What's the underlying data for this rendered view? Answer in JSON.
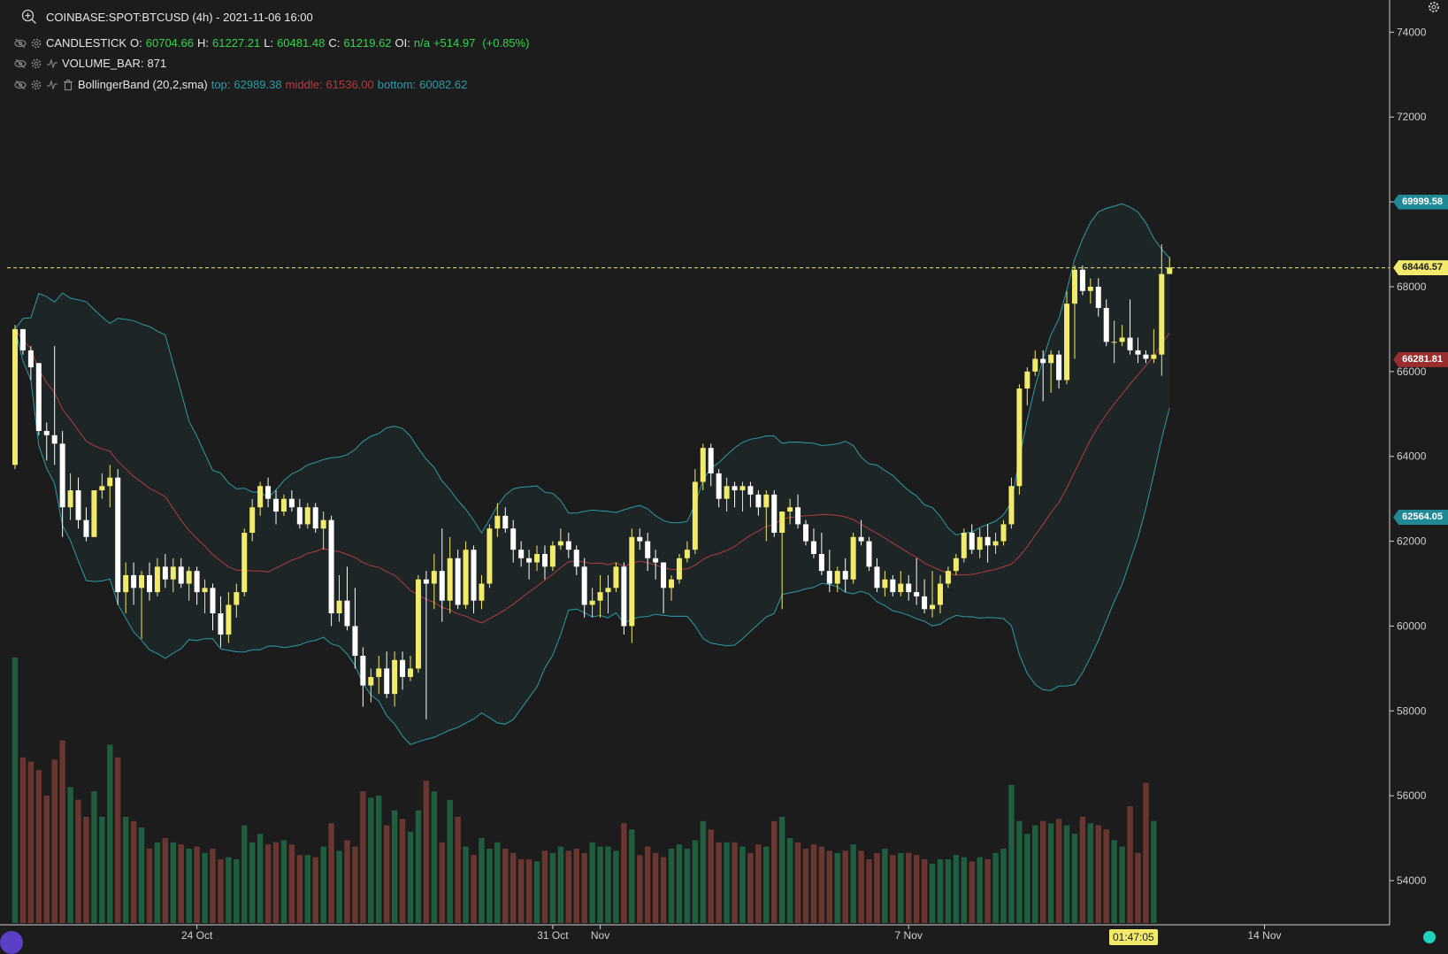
{
  "header": {
    "symbol_line": "COINBASE:SPOT:BTCUSD (4h) - 2021-11-06 16:00"
  },
  "legend": {
    "candlestick": {
      "name": "CANDLESTICK",
      "o_label": "O:",
      "o": "60704.66",
      "h_label": "H:",
      "h": "61227.21",
      "l_label": "L:",
      "l": "60481.48",
      "c_label": "C:",
      "c": "61219.62",
      "oi_label": "OI:",
      "oi": "n/a",
      "change": "+514.97",
      "change_pct": "(+0.85%)"
    },
    "volume": {
      "name": "VOLUME_BAR:",
      "value": "871"
    },
    "bollinger": {
      "name": "BollingerBand (20,2,sma)",
      "top_label": "top:",
      "top": "62989.38",
      "middle_label": "middle:",
      "middle": "61536.00",
      "bottom_label": "bottom:",
      "bottom": "60082.62"
    }
  },
  "price_tags": {
    "upper": "69999.58",
    "last": "68446.57",
    "middle": "66281.81",
    "lower": "62564.05"
  },
  "crosshair_time": "01:47:05",
  "colors": {
    "bull": "#f2ea6b",
    "bear": "#ffffff",
    "vol_up": "#1f5e3e",
    "vol_down": "#6a3730",
    "band": "#2a9ba8",
    "mid": "#b33b3b",
    "last": "#f2ea6b"
  },
  "chart_data": {
    "type": "candlestick",
    "x_ticks": [
      "24 Oct",
      "31 Oct",
      "Nov",
      "7 Nov",
      "14 Nov"
    ],
    "y_ticks": [
      "54000",
      "56000",
      "58000",
      "60000",
      "62000",
      "64000",
      "66000",
      "68000",
      "70000",
      "72000",
      "74000"
    ],
    "ylim": [
      53000,
      74300
    ],
    "interval": "4h",
    "candles": [
      {
        "o": 63800,
        "h": 67100,
        "l": 63700,
        "c": 67000
      },
      {
        "o": 67000,
        "h": 67000,
        "l": 66400,
        "c": 66500
      },
      {
        "o": 66500,
        "h": 66600,
        "l": 65800,
        "c": 66100
      },
      {
        "o": 66200,
        "h": 66200,
        "l": 64500,
        "c": 64600
      },
      {
        "o": 64600,
        "h": 64800,
        "l": 63900,
        "c": 64500
      },
      {
        "o": 64500,
        "h": 66600,
        "l": 63800,
        "c": 64300
      },
      {
        "o": 64300,
        "h": 64600,
        "l": 62100,
        "c": 62800
      },
      {
        "o": 62800,
        "h": 63600,
        "l": 62500,
        "c": 63200
      },
      {
        "o": 63200,
        "h": 63500,
        "l": 62300,
        "c": 62500
      },
      {
        "o": 62500,
        "h": 62800,
        "l": 62000,
        "c": 62100
      },
      {
        "o": 62100,
        "h": 63200,
        "l": 62100,
        "c": 63200
      },
      {
        "o": 63200,
        "h": 63600,
        "l": 63000,
        "c": 63300
      },
      {
        "o": 63300,
        "h": 63800,
        "l": 62800,
        "c": 63500
      },
      {
        "o": 63500,
        "h": 63700,
        "l": 60500,
        "c": 60800
      },
      {
        "o": 60800,
        "h": 61500,
        "l": 60300,
        "c": 61200
      },
      {
        "o": 61200,
        "h": 61500,
        "l": 60500,
        "c": 60900
      },
      {
        "o": 60900,
        "h": 61300,
        "l": 59700,
        "c": 61200
      },
      {
        "o": 61200,
        "h": 61500,
        "l": 60600,
        "c": 60800
      },
      {
        "o": 60800,
        "h": 61600,
        "l": 60700,
        "c": 61400
      },
      {
        "o": 61400,
        "h": 61700,
        "l": 60900,
        "c": 61100
      },
      {
        "o": 61100,
        "h": 61600,
        "l": 60800,
        "c": 61400
      },
      {
        "o": 61400,
        "h": 61600,
        "l": 60900,
        "c": 61000
      },
      {
        "o": 61000,
        "h": 61400,
        "l": 60600,
        "c": 61300
      },
      {
        "o": 61300,
        "h": 61400,
        "l": 60500,
        "c": 60800
      },
      {
        "o": 60800,
        "h": 61100,
        "l": 60300,
        "c": 60900
      },
      {
        "o": 60900,
        "h": 61000,
        "l": 59900,
        "c": 60300
      },
      {
        "o": 60300,
        "h": 60700,
        "l": 59500,
        "c": 59800
      },
      {
        "o": 59800,
        "h": 60800,
        "l": 59600,
        "c": 60500
      },
      {
        "o": 60500,
        "h": 61000,
        "l": 60200,
        "c": 60800
      },
      {
        "o": 60800,
        "h": 62300,
        "l": 60700,
        "c": 62200
      },
      {
        "o": 62200,
        "h": 63000,
        "l": 62000,
        "c": 62800
      },
      {
        "o": 62800,
        "h": 63400,
        "l": 62600,
        "c": 63300
      },
      {
        "o": 63300,
        "h": 63500,
        "l": 62800,
        "c": 63000
      },
      {
        "o": 63000,
        "h": 63200,
        "l": 62400,
        "c": 62700
      },
      {
        "o": 62700,
        "h": 63100,
        "l": 62600,
        "c": 63000
      },
      {
        "o": 63000,
        "h": 63200,
        "l": 62700,
        "c": 62800
      },
      {
        "o": 62800,
        "h": 63000,
        "l": 62300,
        "c": 62400
      },
      {
        "o": 62400,
        "h": 62900,
        "l": 62300,
        "c": 62800
      },
      {
        "o": 62800,
        "h": 62900,
        "l": 62200,
        "c": 62300
      },
      {
        "o": 62300,
        "h": 62700,
        "l": 61800,
        "c": 62500
      },
      {
        "o": 62500,
        "h": 62600,
        "l": 60000,
        "c": 60300
      },
      {
        "o": 60300,
        "h": 61200,
        "l": 60100,
        "c": 60600
      },
      {
        "o": 60600,
        "h": 61400,
        "l": 59900,
        "c": 60000
      },
      {
        "o": 60000,
        "h": 60900,
        "l": 59000,
        "c": 59300
      },
      {
        "o": 59300,
        "h": 59500,
        "l": 58100,
        "c": 58600
      },
      {
        "o": 58600,
        "h": 59000,
        "l": 58200,
        "c": 58800
      },
      {
        "o": 58800,
        "h": 59300,
        "l": 58400,
        "c": 59000
      },
      {
        "o": 59000,
        "h": 59400,
        "l": 58300,
        "c": 58400
      },
      {
        "o": 58400,
        "h": 59400,
        "l": 58100,
        "c": 59200
      },
      {
        "o": 59200,
        "h": 59400,
        "l": 58500,
        "c": 58800
      },
      {
        "o": 58800,
        "h": 59300,
        "l": 58700,
        "c": 59000
      },
      {
        "o": 59000,
        "h": 61200,
        "l": 58900,
        "c": 61100
      },
      {
        "o": 61100,
        "h": 61300,
        "l": 57800,
        "c": 61000
      },
      {
        "o": 61000,
        "h": 61700,
        "l": 60400,
        "c": 61300
      },
      {
        "o": 61300,
        "h": 62300,
        "l": 60100,
        "c": 60600
      },
      {
        "o": 60600,
        "h": 62100,
        "l": 60300,
        "c": 61600
      },
      {
        "o": 61600,
        "h": 61800,
        "l": 60400,
        "c": 60500
      },
      {
        "o": 60500,
        "h": 62000,
        "l": 60400,
        "c": 61800
      },
      {
        "o": 61800,
        "h": 61900,
        "l": 60300,
        "c": 60600
      },
      {
        "o": 60600,
        "h": 61200,
        "l": 60400,
        "c": 61000
      },
      {
        "o": 61000,
        "h": 62400,
        "l": 60900,
        "c": 62300
      },
      {
        "o": 62300,
        "h": 62900,
        "l": 62100,
        "c": 62600
      },
      {
        "o": 62600,
        "h": 62800,
        "l": 62200,
        "c": 62300
      },
      {
        "o": 62300,
        "h": 62500,
        "l": 61500,
        "c": 61800
      },
      {
        "o": 61800,
        "h": 62000,
        "l": 61400,
        "c": 61600
      },
      {
        "o": 61600,
        "h": 61800,
        "l": 61100,
        "c": 61500
      },
      {
        "o": 61500,
        "h": 61900,
        "l": 61300,
        "c": 61700
      },
      {
        "o": 61700,
        "h": 61900,
        "l": 61100,
        "c": 61400
      },
      {
        "o": 61400,
        "h": 62000,
        "l": 61300,
        "c": 61900
      },
      {
        "o": 61900,
        "h": 62300,
        "l": 61800,
        "c": 62000
      },
      {
        "o": 62000,
        "h": 62200,
        "l": 61600,
        "c": 61800
      },
      {
        "o": 61800,
        "h": 61900,
        "l": 61200,
        "c": 61400
      },
      {
        "o": 61400,
        "h": 61600,
        "l": 60200,
        "c": 60500
      },
      {
        "o": 60500,
        "h": 60900,
        "l": 60200,
        "c": 60600
      },
      {
        "o": 60600,
        "h": 61200,
        "l": 60200,
        "c": 60800
      },
      {
        "o": 60800,
        "h": 61200,
        "l": 60300,
        "c": 60900
      },
      {
        "o": 60900,
        "h": 61500,
        "l": 60800,
        "c": 61400
      },
      {
        "o": 61400,
        "h": 61500,
        "l": 59800,
        "c": 60000
      },
      {
        "o": 60000,
        "h": 62300,
        "l": 59600,
        "c": 62100
      },
      {
        "o": 62100,
        "h": 62300,
        "l": 61800,
        "c": 62000
      },
      {
        "o": 62000,
        "h": 62200,
        "l": 61300,
        "c": 61600
      },
      {
        "o": 61600,
        "h": 61800,
        "l": 61100,
        "c": 61500
      },
      {
        "o": 61500,
        "h": 61500,
        "l": 60300,
        "c": 60900
      },
      {
        "o": 60900,
        "h": 61200,
        "l": 60600,
        "c": 61100
      },
      {
        "o": 61100,
        "h": 61700,
        "l": 61000,
        "c": 61600
      },
      {
        "o": 61600,
        "h": 62000,
        "l": 61500,
        "c": 61800
      },
      {
        "o": 61800,
        "h": 63700,
        "l": 61700,
        "c": 63400
      },
      {
        "o": 63400,
        "h": 64300,
        "l": 63200,
        "c": 64200
      },
      {
        "o": 64200,
        "h": 64300,
        "l": 63300,
        "c": 63600
      },
      {
        "o": 63600,
        "h": 63700,
        "l": 62800,
        "c": 63000
      },
      {
        "o": 63000,
        "h": 63500,
        "l": 62700,
        "c": 63300
      },
      {
        "o": 63300,
        "h": 63400,
        "l": 62800,
        "c": 63200
      },
      {
        "o": 63200,
        "h": 63400,
        "l": 62700,
        "c": 63300
      },
      {
        "o": 63300,
        "h": 63400,
        "l": 62800,
        "c": 63100
      },
      {
        "o": 63100,
        "h": 63200,
        "l": 62600,
        "c": 62800
      },
      {
        "o": 62800,
        "h": 63200,
        "l": 62000,
        "c": 63100
      },
      {
        "o": 63100,
        "h": 63200,
        "l": 62100,
        "c": 62200
      },
      {
        "o": 62200,
        "h": 62700,
        "l": 60400,
        "c": 62700
      },
      {
        "o": 62700,
        "h": 63000,
        "l": 62400,
        "c": 62800
      },
      {
        "o": 62800,
        "h": 63100,
        "l": 62300,
        "c": 62400
      },
      {
        "o": 62400,
        "h": 62500,
        "l": 61900,
        "c": 62000
      },
      {
        "o": 62000,
        "h": 62300,
        "l": 61600,
        "c": 61700
      },
      {
        "o": 61700,
        "h": 62200,
        "l": 61200,
        "c": 61300
      },
      {
        "o": 61300,
        "h": 61800,
        "l": 60800,
        "c": 61000
      },
      {
        "o": 61000,
        "h": 61400,
        "l": 60800,
        "c": 61300
      },
      {
        "o": 61300,
        "h": 61600,
        "l": 60800,
        "c": 61100
      },
      {
        "o": 61100,
        "h": 62200,
        "l": 61000,
        "c": 62100
      },
      {
        "o": 62100,
        "h": 62500,
        "l": 61900,
        "c": 62000
      },
      {
        "o": 62000,
        "h": 62100,
        "l": 61300,
        "c": 61400
      },
      {
        "o": 61400,
        "h": 61600,
        "l": 60800,
        "c": 60900
      },
      {
        "o": 60900,
        "h": 61300,
        "l": 60700,
        "c": 61100
      },
      {
        "o": 61100,
        "h": 61200,
        "l": 60700,
        "c": 60800
      },
      {
        "o": 60800,
        "h": 61300,
        "l": 60700,
        "c": 61000
      },
      {
        "o": 61000,
        "h": 61200,
        "l": 60600,
        "c": 60800
      },
      {
        "o": 60800,
        "h": 61600,
        "l": 60500,
        "c": 60700
      },
      {
        "o": 60700,
        "h": 61100,
        "l": 60300,
        "c": 60400
      },
      {
        "o": 60400,
        "h": 61300,
        "l": 60200,
        "c": 60500
      },
      {
        "o": 60500,
        "h": 61200,
        "l": 60300,
        "c": 61000
      },
      {
        "o": 61000,
        "h": 61400,
        "l": 60900,
        "c": 61300
      },
      {
        "o": 61300,
        "h": 61700,
        "l": 61200,
        "c": 61600
      },
      {
        "o": 61600,
        "h": 62300,
        "l": 61500,
        "c": 62200
      },
      {
        "o": 62200,
        "h": 62400,
        "l": 61700,
        "c": 61800
      },
      {
        "o": 61800,
        "h": 62300,
        "l": 61600,
        "c": 62100
      },
      {
        "o": 62100,
        "h": 62400,
        "l": 61500,
        "c": 61900
      },
      {
        "o": 61900,
        "h": 62200,
        "l": 61700,
        "c": 62000
      },
      {
        "o": 62000,
        "h": 62500,
        "l": 61900,
        "c": 62400
      },
      {
        "o": 62400,
        "h": 63500,
        "l": 62300,
        "c": 63300
      },
      {
        "o": 63300,
        "h": 65700,
        "l": 63100,
        "c": 65600
      },
      {
        "o": 65600,
        "h": 66100,
        "l": 65200,
        "c": 66000
      },
      {
        "o": 66000,
        "h": 66500,
        "l": 65900,
        "c": 66300
      },
      {
        "o": 66300,
        "h": 66500,
        "l": 65300,
        "c": 66200
      },
      {
        "o": 66200,
        "h": 66500,
        "l": 65500,
        "c": 66400
      },
      {
        "o": 66400,
        "h": 66500,
        "l": 65600,
        "c": 65800
      },
      {
        "o": 65800,
        "h": 67900,
        "l": 65700,
        "c": 67600
      },
      {
        "o": 67600,
        "h": 68500,
        "l": 66300,
        "c": 68400
      },
      {
        "o": 68400,
        "h": 68500,
        "l": 67800,
        "c": 67900
      },
      {
        "o": 67900,
        "h": 68200,
        "l": 67600,
        "c": 68000
      },
      {
        "o": 68000,
        "h": 68200,
        "l": 67300,
        "c": 67500
      },
      {
        "o": 67500,
        "h": 67700,
        "l": 66600,
        "c": 66700
      },
      {
        "o": 66700,
        "h": 67200,
        "l": 66200,
        "c": 66700
      },
      {
        "o": 66700,
        "h": 67100,
        "l": 66600,
        "c": 66800
      },
      {
        "o": 66800,
        "h": 67700,
        "l": 66400,
        "c": 66500
      },
      {
        "o": 66500,
        "h": 66800,
        "l": 66200,
        "c": 66400
      },
      {
        "o": 66400,
        "h": 66500,
        "l": 66200,
        "c": 66300
      },
      {
        "o": 66300,
        "h": 67000,
        "l": 66200,
        "c": 66400
      },
      {
        "o": 66400,
        "h": 69000,
        "l": 65900,
        "c": 68300
      },
      {
        "o": 68300,
        "h": 68700,
        "l": 68300,
        "c": 68450
      }
    ],
    "volume": [
      1250,
      780,
      760,
      720,
      600,
      770,
      860,
      640,
      580,
      500,
      620,
      500,
      840,
      780,
      500,
      480,
      450,
      350,
      380,
      400,
      380,
      370,
      350,
      360,
      330,
      350,
      300,
      310,
      300,
      460,
      380,
      420,
      370,
      380,
      390,
      370,
      320,
      320,
      310,
      360,
      470,
      340,
      390,
      360,
      620,
      590,
      600,
      460,
      530,
      490,
      430,
      530,
      670,
      620,
      380,
      580,
      500,
      360,
      320,
      400,
      350,
      380,
      350,
      330,
      300,
      300,
      290,
      340,
      330,
      360,
      340,
      350,
      330,
      380,
      360,
      360,
      340,
      470,
      440,
      320,
      360,
      330,
      310,
      350,
      370,
      350,
      390,
      480,
      440,
      380,
      380,
      380,
      360,
      330,
      370,
      360,
      480,
      500,
      400,
      380,
      350,
      370,
      360,
      340,
      330,
      340,
      370,
      340,
      300,
      330,
      350,
      320,
      330,
      330,
      320,
      300,
      280,
      300,
      300,
      320,
      310,
      290,
      310,
      300,
      330,
      350,
      650,
      480,
      420,
      460,
      480,
      470,
      490,
      460,
      420,
      500,
      470,
      460,
      440,
      390,
      360,
      550,
      330,
      660,
      480
    ],
    "bollinger": {
      "period": 20,
      "stddev": 2,
      "type": "sma",
      "upper_last": 69999.58,
      "middle_last": 66281.81,
      "lower_last": 62564.05
    },
    "last_price": 68446.57
  }
}
